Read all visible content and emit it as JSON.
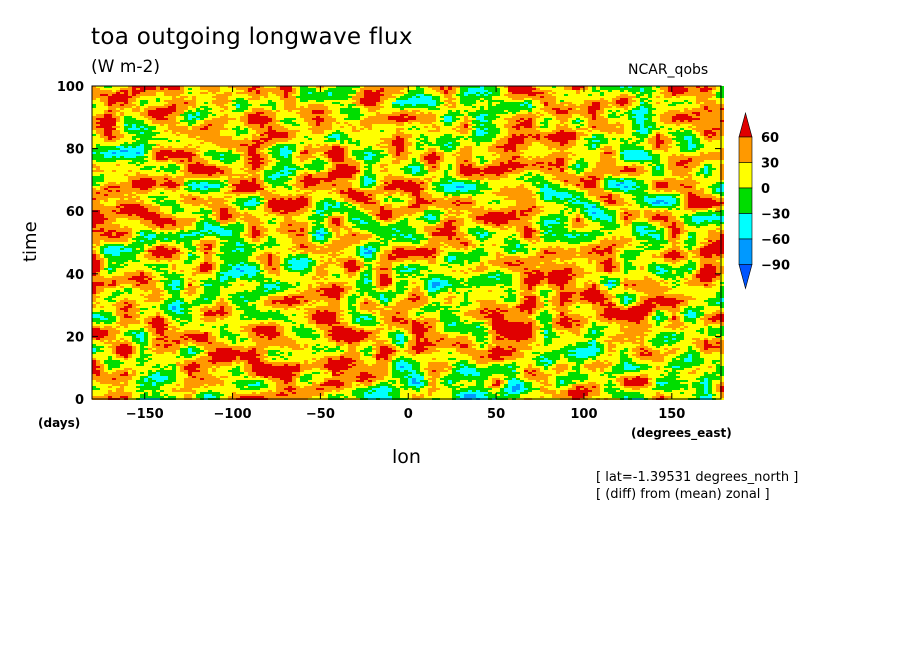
{
  "chart_data": {
    "type": "heatmap",
    "title": "toa outgoing longwave flux",
    "units": "(W m-2)",
    "dataset": "NCAR_qobs",
    "xlabel": "lon",
    "ylabel": "time",
    "x_units": "(degrees_east)",
    "y_units": "(days)",
    "xlim": [
      -180,
      178
    ],
    "ylim": [
      0,
      100
    ],
    "x_ticks": [
      -150,
      -100,
      -50,
      0,
      50,
      100,
      150
    ],
    "y_ticks": [
      0,
      20,
      40,
      60,
      80,
      100
    ],
    "colorbar": {
      "levels": [
        60,
        30,
        0,
        -30,
        -60,
        -90
      ],
      "colors": {
        "above_60": "#e00000",
        "30_to_60": "#ff9900",
        "0_to_30": "#ffff00",
        "-30_to_0": "#00dd00",
        "-60_to_-30": "#00ffff",
        "-90_to_-60": "#0099ff",
        "below_-90": "#0055ff"
      }
    },
    "annotations": [
      "[ lat=-1.39531 degrees_north ]",
      "[ (diff) from (mean) zonal ]"
    ]
  }
}
